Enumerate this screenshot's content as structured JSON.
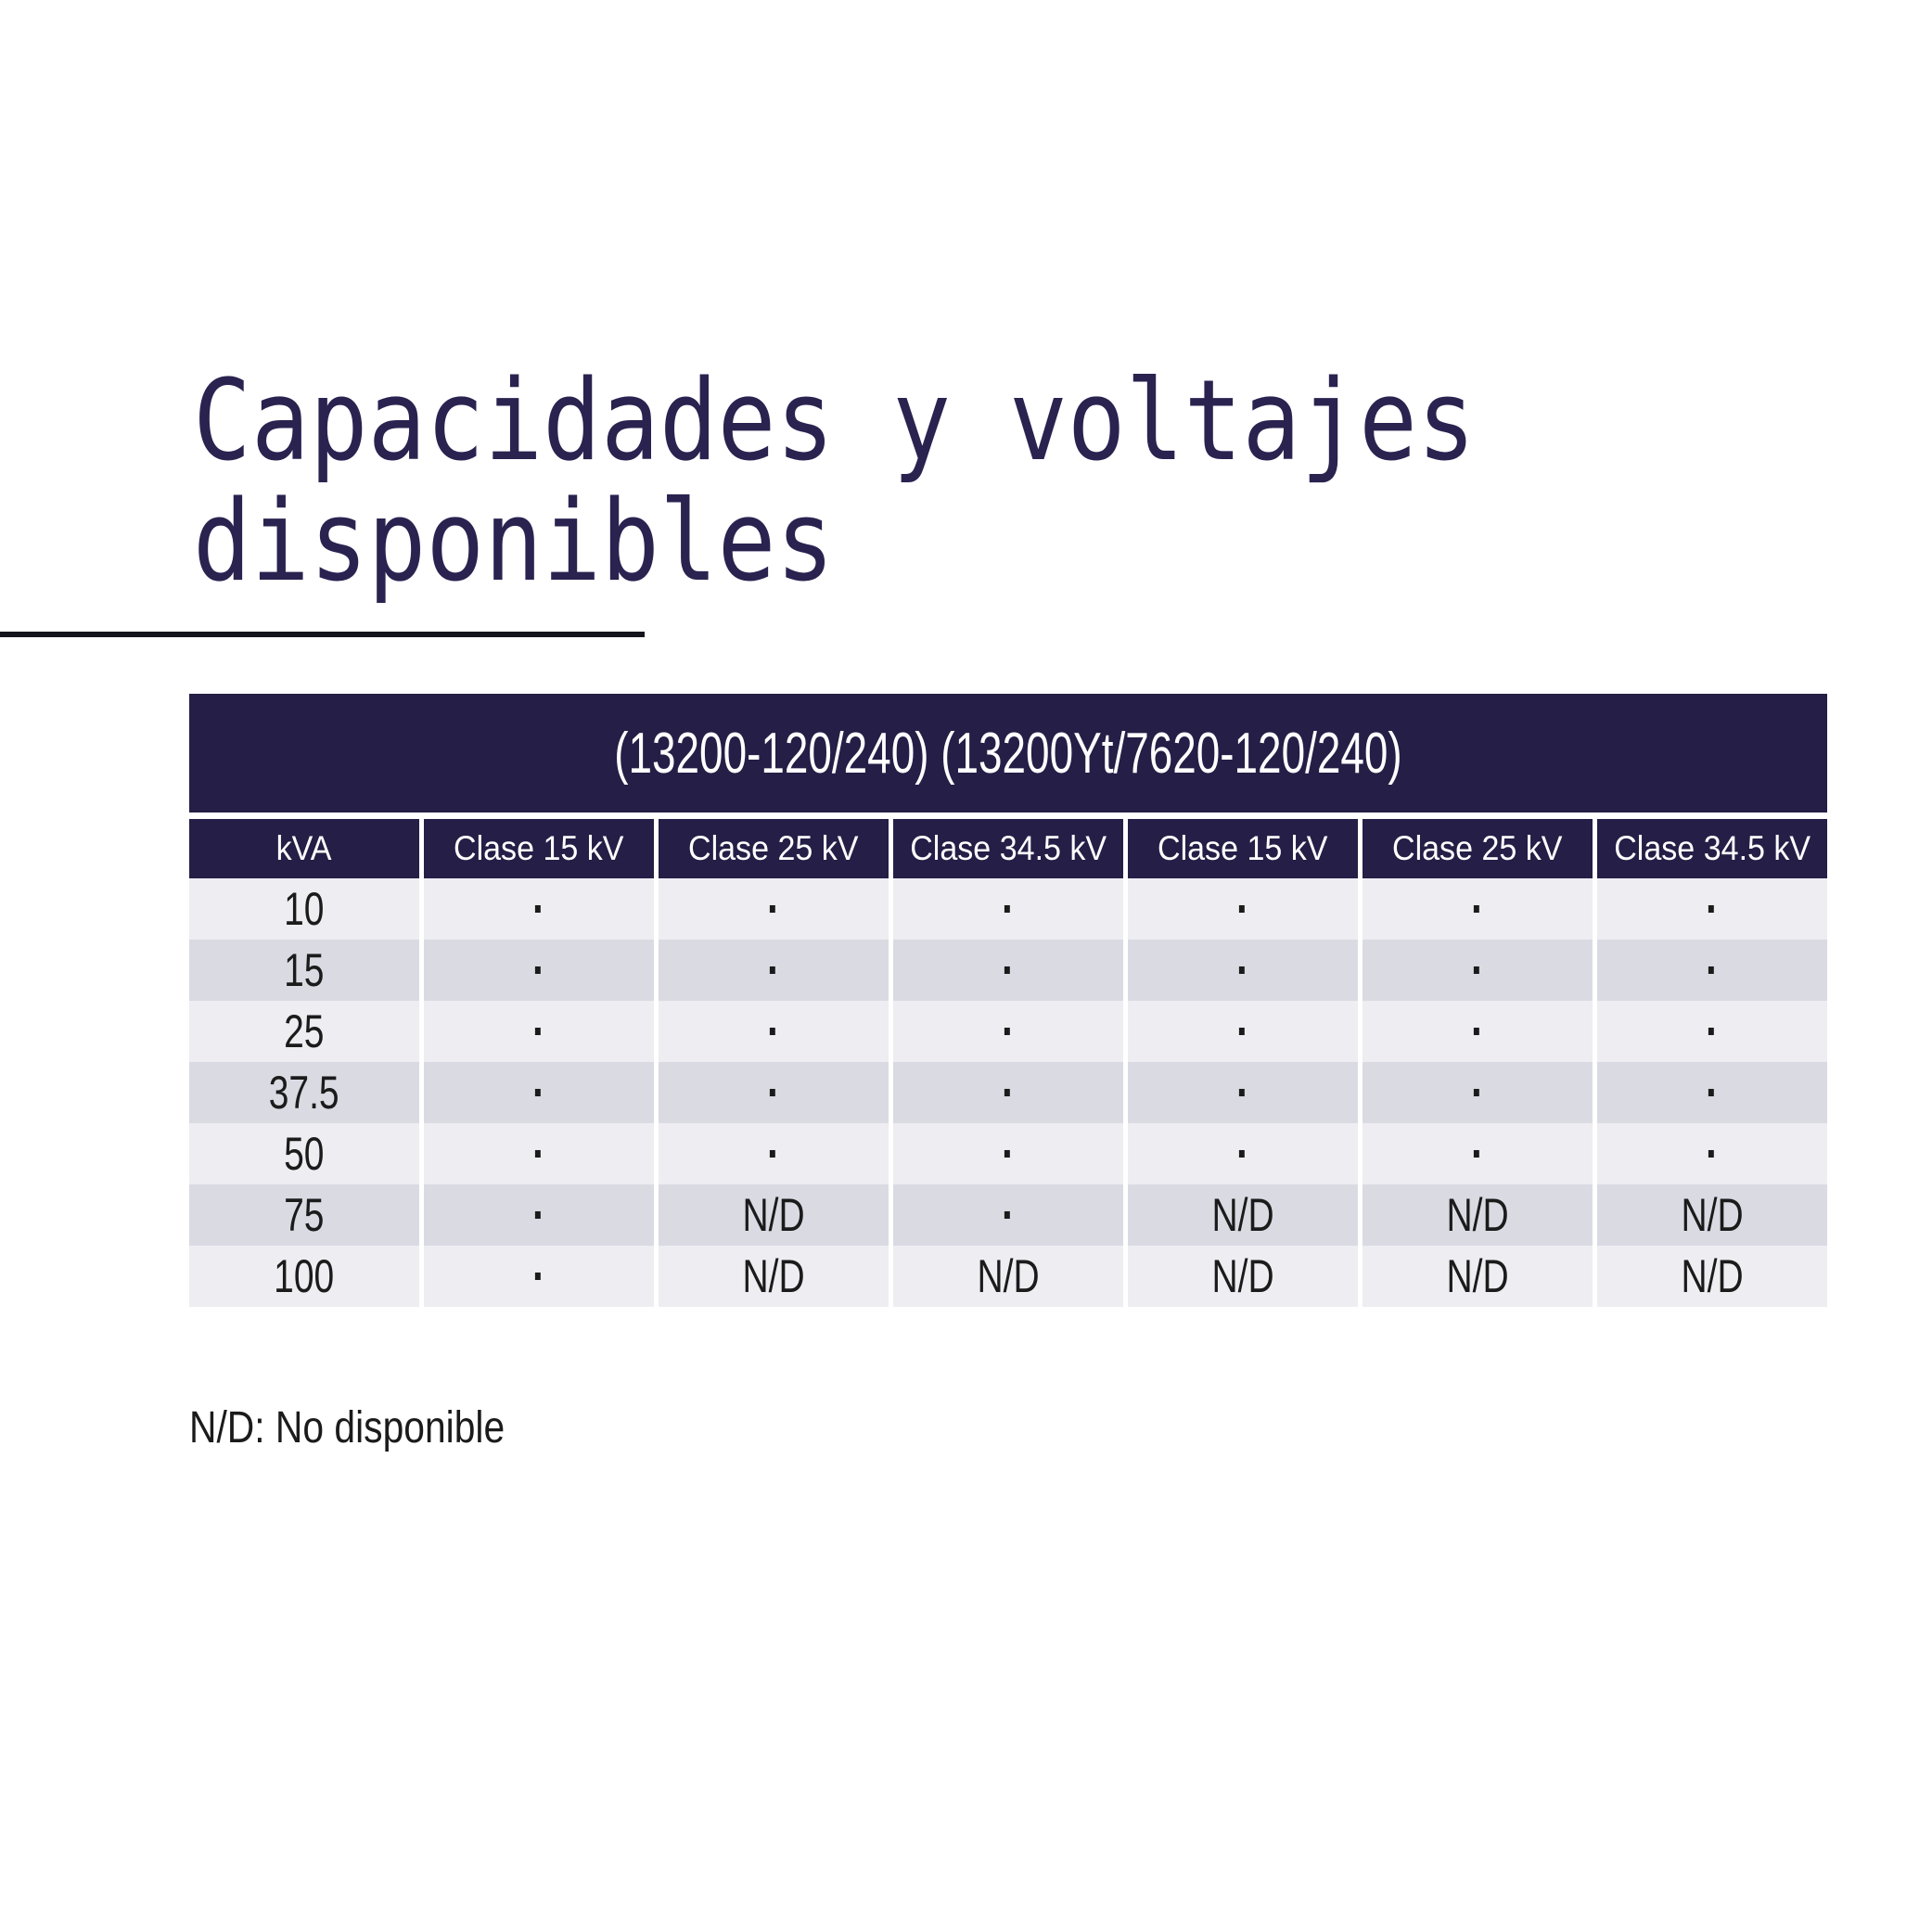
{
  "title": {
    "line1": "Capacidades y voltajes",
    "line2": "disponibles"
  },
  "table": {
    "merged_header": "(13200-120/240) (13200Yt/7620-120/240)",
    "columns": [
      "kVA",
      "Clase 15 kV",
      "Clase 25 kV",
      "Clase 34.5 kV",
      "Clase 15 kV",
      "Clase 25 kV",
      "Clase 34.5 kV"
    ],
    "rows": [
      {
        "kva": "10",
        "values": [
          "·",
          "·",
          "·",
          "·",
          "·",
          "·"
        ]
      },
      {
        "kva": "15",
        "values": [
          "·",
          "·",
          "·",
          "·",
          "·",
          "·"
        ]
      },
      {
        "kva": "25",
        "values": [
          "·",
          "·",
          "·",
          "·",
          "·",
          "·"
        ]
      },
      {
        "kva": "37.5",
        "values": [
          "·",
          "·",
          "·",
          "·",
          "·",
          "·"
        ]
      },
      {
        "kva": "50",
        "values": [
          "·",
          "·",
          "·",
          "·",
          "·",
          "·"
        ]
      },
      {
        "kva": "75",
        "values": [
          "·",
          "N/D",
          "·",
          "N/D",
          "N/D",
          "N/D"
        ]
      },
      {
        "kva": "100",
        "values": [
          "·",
          "N/D",
          "N/D",
          "N/D",
          "N/D",
          "N/D"
        ]
      }
    ]
  },
  "footnote": "N/D: No disponible",
  "colors": {
    "navy": "#251E46",
    "title": "#2A2350",
    "row_light": "#EDEDF2",
    "row_dark": "#DADAE3",
    "underline": "#14141C",
    "text": "#1B1B1B"
  }
}
